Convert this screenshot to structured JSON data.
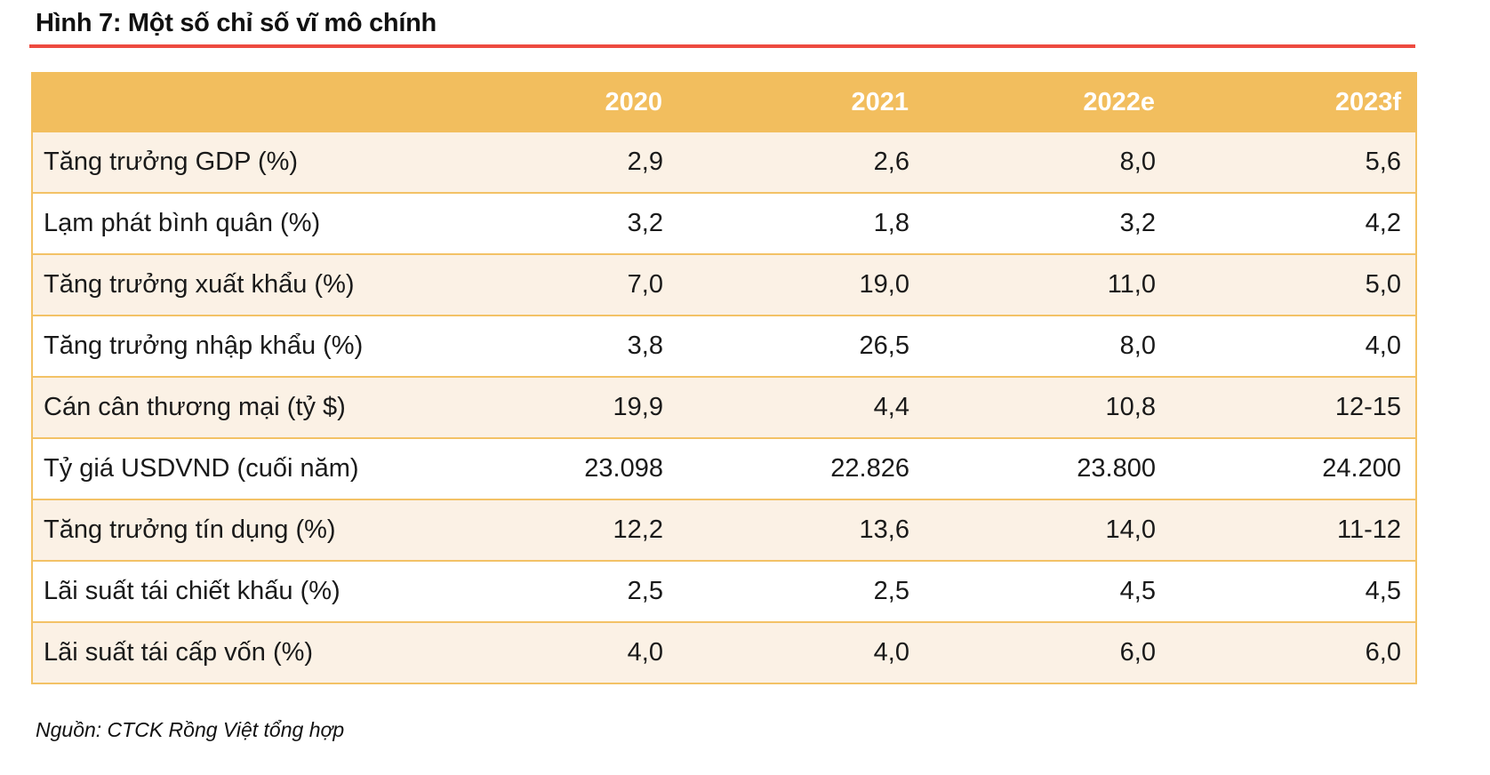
{
  "figure": {
    "title": "Hình 7: Một số chỉ số vĩ mô chính",
    "source": "Nguồn: CTCK Rồng Việt tổng hợp"
  },
  "colors": {
    "header_bg": "#F2BE5E",
    "row_alt_bg": "#FBF1E5",
    "table_border": "#F3C266",
    "rule_red": "#EE4B40",
    "header_text": "#FFFFFF",
    "body_text": "#1A1A1A"
  },
  "chart_data": {
    "type": "table",
    "title": "Hình 7: Một số chỉ số vĩ mô chính",
    "columns": [
      "2020",
      "2021",
      "2022e",
      "2023f"
    ],
    "rows": [
      {
        "label": "Tăng trưởng GDP (%)",
        "values": [
          "2,9",
          "2,6",
          "8,0",
          "5,6"
        ]
      },
      {
        "label": "Lạm phát bình quân (%)",
        "values": [
          "3,2",
          "1,8",
          "3,2",
          "4,2"
        ]
      },
      {
        "label": "Tăng trưởng xuất khẩu (%)",
        "values": [
          "7,0",
          "19,0",
          "11,0",
          "5,0"
        ]
      },
      {
        "label": "Tăng trưởng nhập khẩu (%)",
        "values": [
          "3,8",
          "26,5",
          "8,0",
          "4,0"
        ]
      },
      {
        "label": "Cán cân thương mại (tỷ $)",
        "values": [
          "19,9",
          "4,4",
          "10,8",
          "12-15"
        ]
      },
      {
        "label": "Tỷ giá USDVND (cuối năm)",
        "values": [
          "23.098",
          "22.826",
          "23.800",
          "24.200"
        ]
      },
      {
        "label": "Tăng trưởng tín dụng (%)",
        "values": [
          "12,2",
          "13,6",
          "14,0",
          "11-12"
        ]
      },
      {
        "label": "Lãi suất tái chiết khấu (%)",
        "values": [
          "2,5",
          "2,5",
          "4,5",
          "4,5"
        ]
      },
      {
        "label": "Lãi suất tái cấp vốn (%)",
        "values": [
          "4,0",
          "4,0",
          "6,0",
          "6,0"
        ]
      }
    ],
    "source": "Nguồn: CTCK Rồng Việt tổng hợp",
    "layout": {
      "value_alignment": "right",
      "label_alignment": "left",
      "striped": true
    }
  }
}
